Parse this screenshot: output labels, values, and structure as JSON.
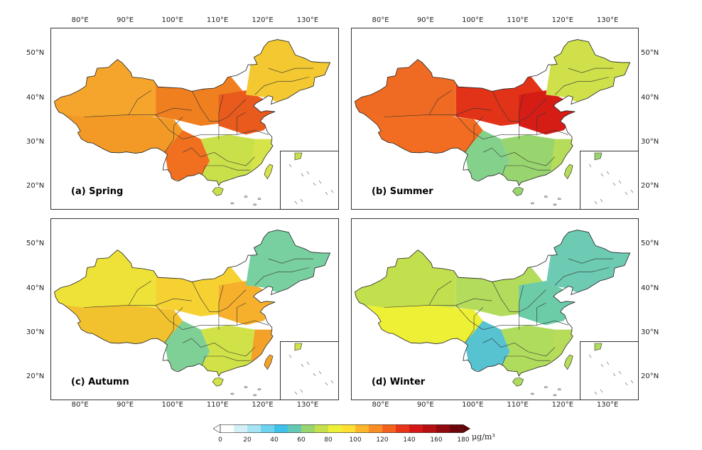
{
  "panels": [
    {
      "label": "(a) Spring",
      "season": "spring",
      "ticks_y_side": "left",
      "ticks_x_side": "top"
    },
    {
      "label": "(b) Summer",
      "season": "summer",
      "ticks_y_side": "right",
      "ticks_x_side": "top"
    },
    {
      "label": "(c) Autumn",
      "season": "autumn",
      "ticks_y_side": "left",
      "ticks_x_side": "bottom"
    },
    {
      "label": "(d) Winter",
      "season": "winter",
      "ticks_y_side": "right",
      "ticks_x_side": "bottom"
    }
  ],
  "x_ticks": [
    "80°E",
    "90°E",
    "100°E",
    "110°E",
    "120°E",
    "130°E"
  ],
  "y_ticks": [
    "50°N",
    "40°N",
    "30°N",
    "20°N"
  ],
  "colorbar": {
    "ticks": [
      "0",
      "20",
      "40",
      "60",
      "80",
      "100",
      "120",
      "140",
      "160",
      "180"
    ],
    "unit": "μg/m³",
    "colors": [
      "#ffffff",
      "#d4f0f7",
      "#a6e4f3",
      "#6dd3ef",
      "#3fc2ea",
      "#63c9b5",
      "#98d56e",
      "#c5e04a",
      "#eef036",
      "#fde032",
      "#fbb62b",
      "#f78d24",
      "#f2621d",
      "#e83518",
      "#d41616",
      "#b50f12",
      "#8f0a0e",
      "#6b060a"
    ],
    "range": [
      0,
      180
    ]
  },
  "seasons": {
    "spring": {
      "west": "#f6a52c",
      "tibet": "#f39a26",
      "north": "#f07f20",
      "northplain": "#e95a1d",
      "northeast": "#f3c830",
      "south": "#c9e04b",
      "southwest": "#f07020",
      "coast": "#d6e44a"
    },
    "summer": {
      "west": "#ef6a22",
      "tibet": "#f26c21",
      "north": "#e23318",
      "northplain": "#d51d16",
      "northeast": "#cfe04a",
      "south": "#98d56e",
      "southwest": "#84d18c",
      "coast": "#b6dd59"
    },
    "autumn": {
      "west": "#eee238",
      "tibet": "#f2c22e",
      "north": "#f5d232",
      "northplain": "#f6b02b",
      "northeast": "#78cfa0",
      "south": "#d0e247",
      "southwest": "#7fd097",
      "coast": "#f3a128"
    },
    "winter": {
      "west": "#c2df4e",
      "tibet": "#eef036",
      "north": "#b4dc5c",
      "northplain": "#6ccca8",
      "northeast": "#6dcab3",
      "south": "#b0dc5d",
      "southwest": "#57c2d0",
      "coast": "#b6dc5a"
    }
  }
}
